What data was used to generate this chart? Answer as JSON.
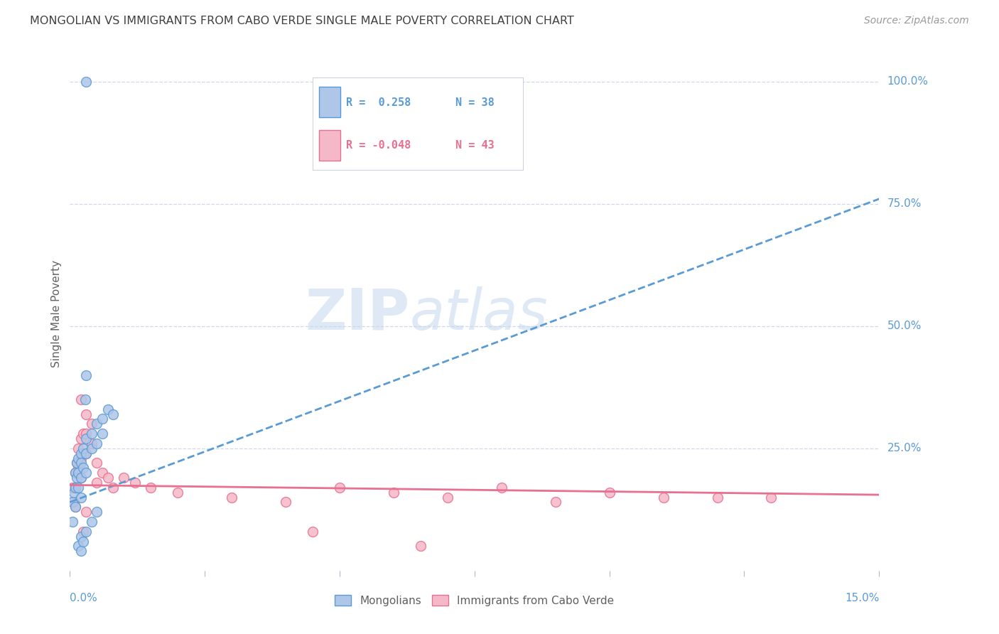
{
  "title": "MONGOLIAN VS IMMIGRANTS FROM CABO VERDE SINGLE MALE POVERTY CORRELATION CHART",
  "source": "Source: ZipAtlas.com",
  "ylabel": "Single Male Poverty",
  "legend_blue_r": "R =  0.258",
  "legend_blue_n": "N = 38",
  "legend_pink_r": "R = -0.048",
  "legend_pink_n": "N = 43",
  "legend_blue_label": "Mongolians",
  "legend_pink_label": "Immigrants from Cabo Verde",
  "blue_color": "#aec6e8",
  "pink_color": "#f5b8c8",
  "blue_edge_color": "#5b9bd5",
  "pink_edge_color": "#e87090",
  "blue_line_color": "#5b9bd5",
  "pink_line_color": "#e87090",
  "watermark_zip": "ZIP",
  "watermark_atlas": "atlas",
  "background_color": "#ffffff",
  "grid_color": "#d0d8e8",
  "title_color": "#404040",
  "axis_label_color": "#5b9bd5",
  "xmin": 0.0,
  "xmax": 0.15,
  "ymin": 0.0,
  "ymax": 1.05,
  "ytick_values": [
    0.25,
    0.5,
    0.75,
    1.0
  ],
  "ytick_labels": [
    "25.0%",
    "50.0%",
    "75.0%",
    "100.0%"
  ],
  "xtick_values": [
    0.0,
    0.025,
    0.05,
    0.075,
    0.1,
    0.125,
    0.15
  ],
  "blue_x": [
    0.0005,
    0.0005,
    0.0008,
    0.001,
    0.001,
    0.001,
    0.0012,
    0.0012,
    0.0015,
    0.0015,
    0.0015,
    0.002,
    0.002,
    0.002,
    0.002,
    0.0025,
    0.0025,
    0.003,
    0.003,
    0.003,
    0.004,
    0.004,
    0.005,
    0.005,
    0.006,
    0.006,
    0.007,
    0.008,
    0.0028,
    0.003,
    0.0015,
    0.002,
    0.002,
    0.0025,
    0.003,
    0.004,
    0.005,
    0.003
  ],
  "blue_y": [
    0.14,
    0.1,
    0.16,
    0.2,
    0.17,
    0.13,
    0.22,
    0.19,
    0.23,
    0.2,
    0.17,
    0.24,
    0.22,
    0.19,
    0.15,
    0.25,
    0.21,
    0.27,
    0.24,
    0.2,
    0.28,
    0.25,
    0.3,
    0.26,
    0.31,
    0.28,
    0.33,
    0.32,
    0.35,
    0.4,
    0.05,
    0.07,
    0.04,
    0.06,
    0.08,
    0.1,
    0.12,
    1.0
  ],
  "pink_x": [
    0.0005,
    0.0008,
    0.001,
    0.001,
    0.001,
    0.0012,
    0.0015,
    0.0015,
    0.002,
    0.002,
    0.002,
    0.0025,
    0.0025,
    0.003,
    0.003,
    0.003,
    0.004,
    0.004,
    0.005,
    0.005,
    0.006,
    0.007,
    0.008,
    0.01,
    0.012,
    0.015,
    0.02,
    0.03,
    0.04,
    0.05,
    0.06,
    0.07,
    0.08,
    0.09,
    0.1,
    0.11,
    0.12,
    0.13,
    0.045,
    0.065,
    0.002,
    0.0025,
    0.003
  ],
  "pink_y": [
    0.17,
    0.14,
    0.2,
    0.17,
    0.13,
    0.22,
    0.25,
    0.21,
    0.27,
    0.23,
    0.19,
    0.28,
    0.24,
    0.32,
    0.28,
    0.24,
    0.3,
    0.26,
    0.22,
    0.18,
    0.2,
    0.19,
    0.17,
    0.19,
    0.18,
    0.17,
    0.16,
    0.15,
    0.14,
    0.17,
    0.16,
    0.15,
    0.17,
    0.14,
    0.16,
    0.15,
    0.15,
    0.15,
    0.08,
    0.05,
    0.35,
    0.08,
    0.12
  ],
  "blue_line_x0": 0.0,
  "blue_line_y0": 0.14,
  "blue_line_x1": 0.15,
  "blue_line_y1": 0.76,
  "pink_line_x0": 0.0,
  "pink_line_y0": 0.175,
  "pink_line_x1": 0.15,
  "pink_line_y1": 0.155
}
